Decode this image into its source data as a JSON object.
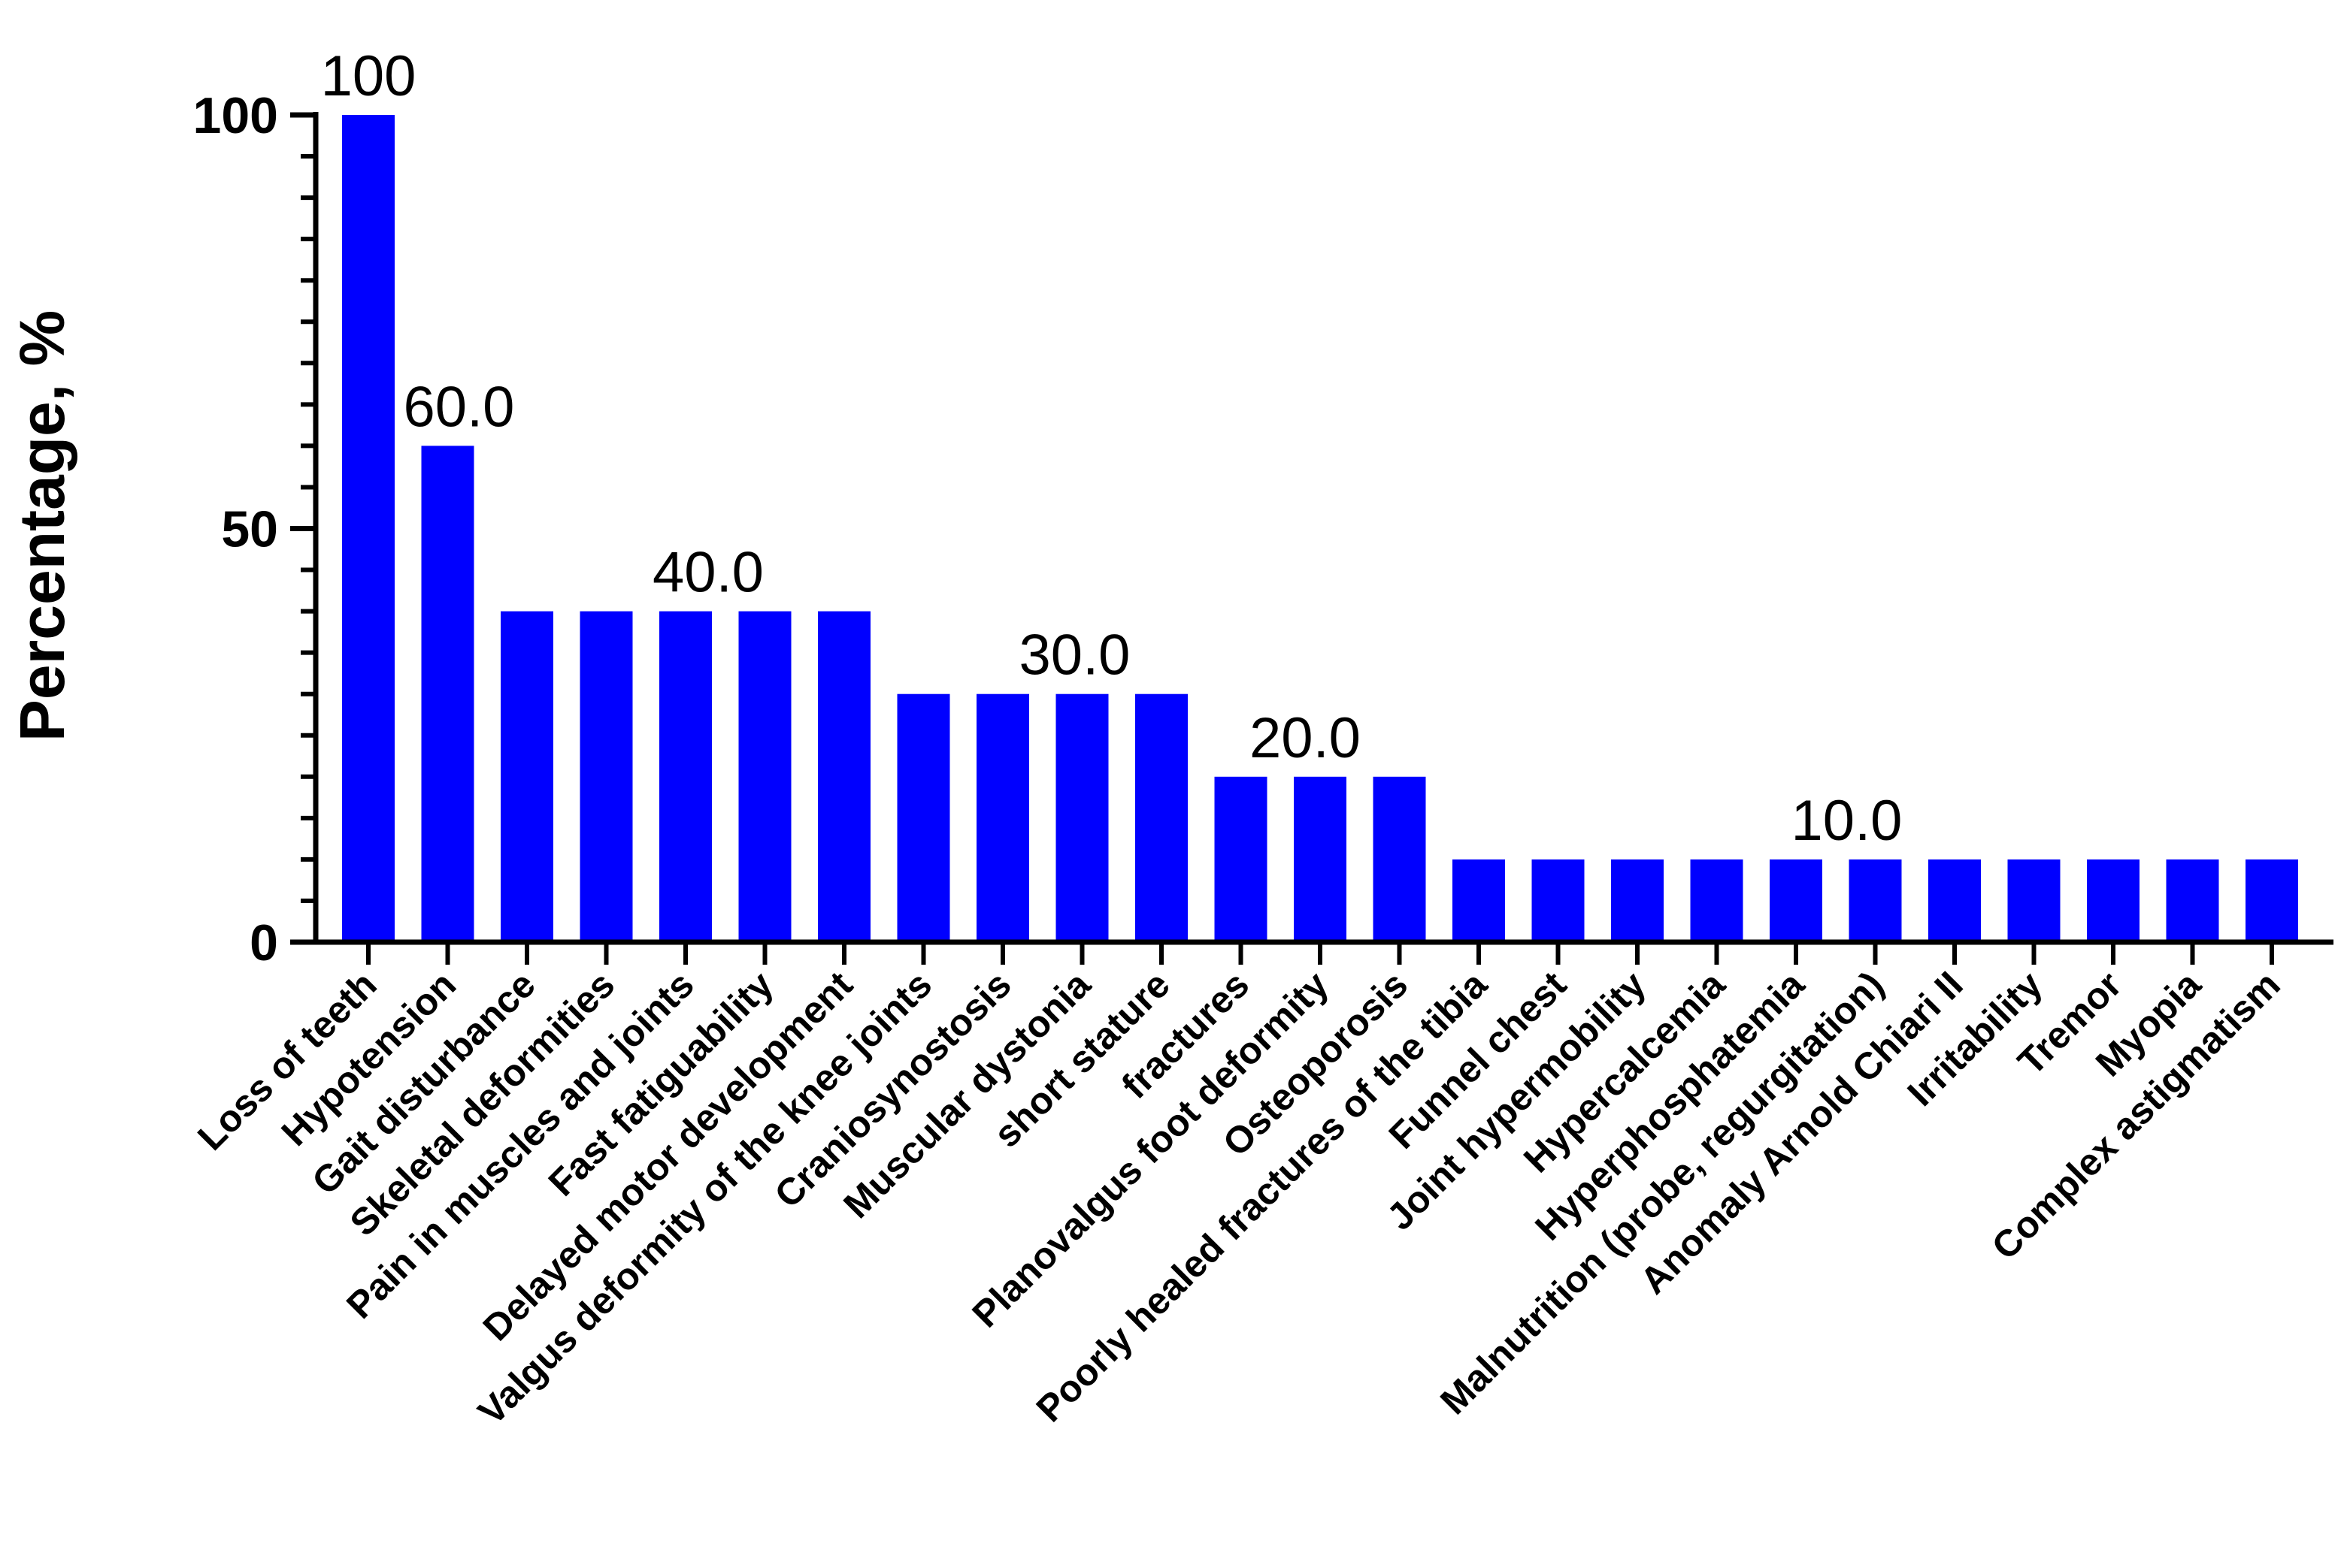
{
  "chart_data": {
    "type": "bar",
    "title": "",
    "xlabel": "",
    "ylabel": "Percentage, %",
    "ylim": [
      0,
      100
    ],
    "yticks": [
      "0",
      "50",
      "100"
    ],
    "grid": false,
    "bar_color": "#0000FF",
    "categories": [
      "Loss of teeth",
      "Hypotension",
      "Gait disturbance",
      "Skeletal deformities",
      "Pain in muscles and joints",
      "Fast fatiguability",
      "Delayed motor development",
      "Valgus deformity of the knee joints",
      "Craniosynostosis",
      "Muscular dystonia",
      "short stature",
      "fractures",
      "Planovalgus foot deformity",
      "Osteoporosis",
      "Poorly healed fractures of the tibia",
      "Funnel chest",
      "Joint hypermobility",
      "Hypercalcemia",
      "Hyperphosphatemia",
      "Malnutrition (probe, regurgitation)",
      "Anomaly Arnold Chiari II",
      "Irritability",
      "Tremor",
      "Myopia",
      "Complex astigmatism"
    ],
    "values": [
      100,
      60,
      40,
      40,
      40,
      40,
      40,
      30,
      30,
      30,
      30,
      20,
      20,
      20,
      10,
      10,
      10,
      10,
      10,
      10,
      10,
      10,
      10,
      10,
      10
    ],
    "annotations": [
      {
        "index": 0,
        "text": "100"
      },
      {
        "index": 1,
        "text": "60.0"
      },
      {
        "index": 4,
        "text": "40.0"
      },
      {
        "index": 9,
        "text": "30.0"
      },
      {
        "index": 12,
        "text": "20.0"
      },
      {
        "index": 19,
        "text": "10.0"
      }
    ]
  }
}
